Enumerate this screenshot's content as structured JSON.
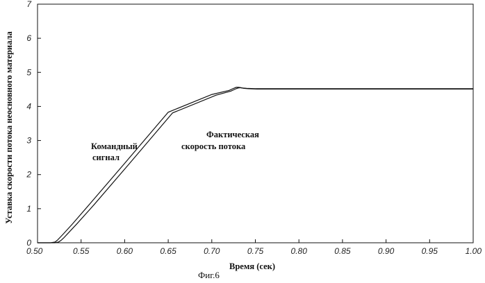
{
  "chart_data": {
    "type": "line",
    "title": "",
    "xlabel": "Время (сек)",
    "ylabel": "Уставка скорости потока неосновного материала",
    "xlim": [
      0.5,
      1.0
    ],
    "ylim": [
      0,
      7
    ],
    "x_ticks": [
      0.5,
      0.55,
      0.6,
      0.65,
      0.7,
      0.75,
      0.8,
      0.85,
      0.9,
      0.95,
      1.0
    ],
    "x_tick_labels": [
      "0.50",
      "0.55",
      "0.60",
      "0.65",
      "0.70",
      "0.75",
      "0.80",
      "0.85",
      "0.90",
      "0.95",
      "1.00"
    ],
    "y_ticks": [
      0,
      1,
      2,
      3,
      4,
      5,
      6,
      7
    ],
    "y_tick_labels": [
      "0",
      "1",
      "2",
      "3",
      "4",
      "5",
      "6",
      "7"
    ],
    "grid": false,
    "series": [
      {
        "name": "Командный сигнал",
        "x": [
          0.5,
          0.515,
          0.52,
          0.523,
          0.526,
          0.53,
          0.54,
          0.56,
          0.6,
          0.65,
          0.7,
          0.72,
          0.725,
          0.728,
          0.731,
          0.735,
          0.74,
          0.75,
          0.8,
          0.9,
          1.0
        ],
        "y": [
          0.0,
          0.0,
          0.02,
          0.08,
          0.16,
          0.27,
          0.55,
          1.14,
          2.33,
          3.83,
          4.35,
          4.47,
          4.53,
          4.56,
          4.56,
          4.54,
          4.53,
          4.52,
          4.52,
          4.52,
          4.52
        ]
      },
      {
        "name": "Фактическая скорость потока",
        "x": [
          0.5,
          0.52,
          0.524,
          0.527,
          0.53,
          0.534,
          0.545,
          0.565,
          0.605,
          0.655,
          0.705,
          0.722,
          0.727,
          0.73,
          0.733,
          0.737,
          0.742,
          0.752,
          0.8,
          0.9,
          1.0
        ],
        "y": [
          0.0,
          0.0,
          0.02,
          0.07,
          0.14,
          0.25,
          0.55,
          1.12,
          2.31,
          3.81,
          4.33,
          4.45,
          4.51,
          4.54,
          4.55,
          4.53,
          4.52,
          4.51,
          4.51,
          4.51,
          4.51
        ]
      }
    ],
    "annotations": [
      {
        "lines": [
          "Командный",
          "сигнал"
        ],
        "target": "series 1"
      },
      {
        "lines": [
          "Фактическая",
          "скорость потока"
        ],
        "target": "series 2"
      }
    ]
  },
  "figure_caption": "Фиг.6"
}
